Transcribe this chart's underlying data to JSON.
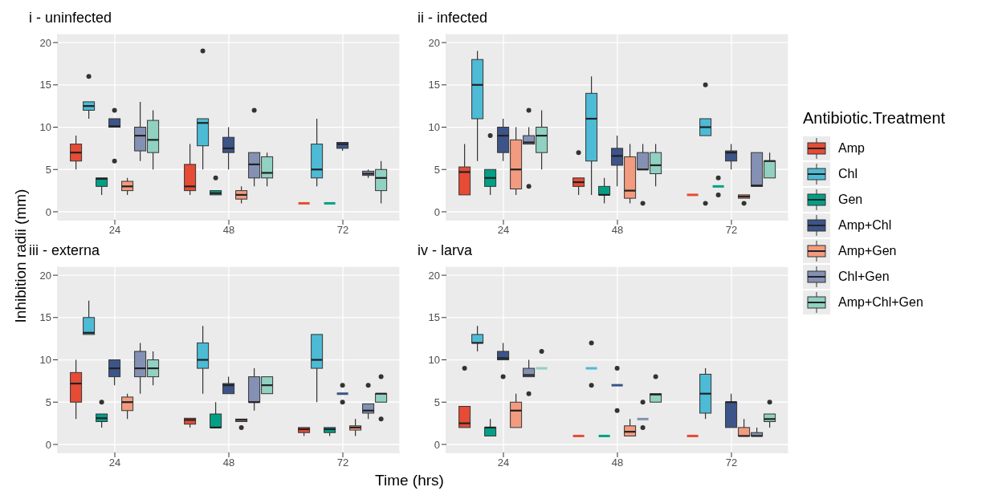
{
  "chart_data": [
    {
      "type": "box",
      "title": "i - uninfected",
      "xlabel": "Time (hrs)",
      "ylabel": "Inhibition radii (mm)",
      "legend_title": "Antibiotic.Treatment",
      "legend": "right",
      "grid": true,
      "categories": [
        "24",
        "48",
        "72"
      ],
      "ylim": [
        -0.95,
        21.05
      ],
      "yticks": [
        0,
        5,
        10,
        15,
        20
      ],
      "series": [
        {
          "name": "Amp",
          "color": "#e64b35",
          "boxes": [
            {
              "low": 5,
              "q1": 6,
              "median": 7,
              "q3": 8,
              "high": 9
            },
            {
              "low": 2,
              "q1": 2.5,
              "median": 3,
              "q3": 5.6,
              "high": 8
            },
            {
              "low": 1,
              "q1": 1,
              "median": 1,
              "q3": 1,
              "high": 1
            }
          ]
        },
        {
          "name": "Chl",
          "color": "#4dbbd5",
          "boxes": [
            {
              "low": 11,
              "q1": 12,
              "median": 12.5,
              "q3": 13,
              "high": 13,
              "outliers": [
                16
              ]
            },
            {
              "low": 5,
              "q1": 7.8,
              "median": 10.5,
              "q3": 11,
              "high": 11,
              "outliers": [
                19
              ]
            },
            {
              "low": 3,
              "q1": 4,
              "median": 5,
              "q3": 8,
              "high": 11
            }
          ]
        },
        {
          "name": "Gen",
          "color": "#00a087",
          "boxes": [
            {
              "low": 2,
              "q1": 3,
              "median": 3.9,
              "q3": 4,
              "high": 4
            },
            {
              "low": 2,
              "q1": 2,
              "median": 2.2,
              "q3": 2.5,
              "high": 2.5,
              "outliers": [
                4
              ]
            },
            {
              "low": 1,
              "q1": 1,
              "median": 1,
              "q3": 1,
              "high": 1
            }
          ]
        },
        {
          "name": "Amp+Chl",
          "color": "#3c5488",
          "boxes": [
            {
              "low": 10,
              "q1": 10,
              "median": 10.1,
              "q3": 11,
              "high": 11,
              "outliers": [
                12,
                6
              ]
            },
            {
              "low": 5,
              "q1": 7,
              "median": 7.5,
              "q3": 8.8,
              "high": 10
            },
            {
              "low": 7.2,
              "q1": 7.5,
              "median": 8,
              "q3": 8.2,
              "high": 8.2
            }
          ]
        },
        {
          "name": "Amp+Gen",
          "color": "#f39b7f",
          "boxes": [
            {
              "low": 2,
              "q1": 2.5,
              "median": 3,
              "q3": 3.6,
              "high": 4
            },
            {
              "low": 1,
              "q1": 1.5,
              "median": 2,
              "q3": 2.5,
              "high": 3
            },
            null
          ]
        },
        {
          "name": "Chl+Gen",
          "color": "#8491b4",
          "boxes": [
            {
              "low": 6,
              "q1": 7.2,
              "median": 9,
              "q3": 10,
              "high": 13
            },
            {
              "low": 3,
              "q1": 4,
              "median": 5.6,
              "q3": 7,
              "high": 7,
              "outliers": [
                12
              ]
            },
            {
              "low": 4,
              "q1": 4.3,
              "median": 4.5,
              "q3": 4.8,
              "high": 5
            }
          ]
        },
        {
          "name": "Amp+Chl+Gen",
          "color": "#91d1c2",
          "boxes": [
            {
              "low": 5,
              "q1": 7,
              "median": 8.5,
              "q3": 10.8,
              "high": 12
            },
            {
              "low": 3,
              "q1": 4,
              "median": 4.6,
              "q3": 6.5,
              "high": 7
            },
            {
              "low": 1,
              "q1": 2.5,
              "median": 4,
              "q3": 5,
              "high": 6
            }
          ]
        }
      ]
    },
    {
      "type": "box",
      "title": "ii - infected",
      "grid": true,
      "categories": [
        "24",
        "48",
        "72"
      ],
      "ylim": [
        -0.95,
        21.05
      ],
      "yticks": [
        0,
        5,
        10,
        15,
        20
      ],
      "series": [
        {
          "color": "#e64b35",
          "boxes": [
            {
              "low": 2,
              "q1": 2,
              "median": 4.7,
              "q3": 5.3,
              "high": 8
            },
            {
              "low": 2,
              "q1": 3,
              "median": 3.5,
              "q3": 4,
              "high": 4,
              "outliers": [
                7
              ]
            },
            {
              "low": 2,
              "q1": 2,
              "median": 2,
              "q3": 2,
              "high": 2
            }
          ]
        },
        {
          "color": "#4dbbd5",
          "boxes": [
            {
              "low": 6,
              "q1": 11,
              "median": 15,
              "q3": 18,
              "high": 19
            },
            {
              "low": 2,
              "q1": 6,
              "median": 11,
              "q3": 14,
              "high": 16
            },
            {
              "low": 9,
              "q1": 9,
              "median": 10,
              "q3": 11,
              "high": 11,
              "outliers": [
                15,
                1
              ]
            }
          ]
        },
        {
          "color": "#00a087",
          "boxes": [
            {
              "low": 2,
              "q1": 3,
              "median": 4,
              "q3": 5,
              "high": 5,
              "outliers": [
                9
              ]
            },
            {
              "low": 1,
              "q1": 2,
              "median": 2,
              "q3": 3,
              "high": 4
            },
            {
              "low": 3,
              "q1": 3,
              "median": 3,
              "q3": 3,
              "high": 3,
              "outliers": [
                4,
                2
              ]
            }
          ]
        },
        {
          "color": "#3c5488",
          "boxes": [
            {
              "low": 6,
              "q1": 7,
              "median": 9,
              "q3": 10,
              "high": 11
            },
            {
              "low": 3,
              "q1": 5.5,
              "median": 6.6,
              "q3": 7.5,
              "high": 9
            },
            {
              "low": 5,
              "q1": 6,
              "median": 7,
              "q3": 7.2,
              "high": 8
            }
          ]
        },
        {
          "color": "#f39b7f",
          "boxes": [
            {
              "low": 2,
              "q1": 2.7,
              "median": 5,
              "q3": 8.5,
              "high": 10
            },
            {
              "low": 1,
              "q1": 1.6,
              "median": 2.5,
              "q3": 6.5,
              "high": 8
            },
            {
              "low": 1.6,
              "q1": 1.6,
              "median": 1.8,
              "q3": 2,
              "high": 2,
              "outliers": [
                1
              ]
            }
          ]
        },
        {
          "color": "#8491b4",
          "boxes": [
            {
              "low": 8,
              "q1": 8,
              "median": 8.2,
              "q3": 9,
              "high": 10,
              "outliers": [
                12,
                3
              ]
            },
            {
              "low": 5,
              "q1": 5,
              "median": 5,
              "q3": 7,
              "high": 8,
              "outliers": [
                1
              ]
            },
            {
              "low": 3,
              "q1": 3,
              "median": 3.1,
              "q3": 7,
              "high": 7
            }
          ]
        },
        {
          "color": "#91d1c2",
          "boxes": [
            {
              "low": 5,
              "q1": 7,
              "median": 9,
              "q3": 10,
              "high": 12
            },
            {
              "low": 3,
              "q1": 4.5,
              "median": 5.5,
              "q3": 7,
              "high": 8
            },
            {
              "low": 4,
              "q1": 4,
              "median": 6,
              "q3": 6,
              "high": 7
            }
          ]
        }
      ]
    },
    {
      "type": "box",
      "title": "iii - externa",
      "grid": true,
      "categories": [
        "24",
        "48",
        "72"
      ],
      "ylim": [
        -0.95,
        21.05
      ],
      "yticks": [
        0,
        5,
        10,
        15,
        20
      ],
      "series": [
        {
          "color": "#e64b35",
          "boxes": [
            {
              "low": 3,
              "q1": 5,
              "median": 7.2,
              "q3": 8.5,
              "high": 10
            },
            {
              "low": 2,
              "q1": 2.4,
              "median": 2.9,
              "q3": 3.1,
              "high": 3.1
            },
            {
              "low": 1,
              "q1": 1.4,
              "median": 1.8,
              "q3": 2,
              "high": 2
            }
          ]
        },
        {
          "color": "#4dbbd5",
          "boxes": [
            {
              "low": 13,
              "q1": 13,
              "median": 13.2,
              "q3": 15,
              "high": 17
            },
            {
              "low": 6,
              "q1": 9,
              "median": 10,
              "q3": 12,
              "high": 14
            },
            {
              "low": 5,
              "q1": 9,
              "median": 10,
              "q3": 13,
              "high": 13
            }
          ]
        },
        {
          "color": "#00a087",
          "boxes": [
            {
              "low": 2,
              "q1": 2.7,
              "median": 3.1,
              "q3": 3.6,
              "high": 3.6,
              "outliers": [
                5
              ]
            },
            {
              "low": 2,
              "q1": 2,
              "median": 2,
              "q3": 3.6,
              "high": 5
            },
            {
              "low": 1,
              "q1": 1.4,
              "median": 1.8,
              "q3": 2,
              "high": 2
            }
          ]
        },
        {
          "color": "#3c5488",
          "boxes": [
            {
              "low": 7,
              "q1": 8,
              "median": 9,
              "q3": 10,
              "high": 10
            },
            {
              "low": 6,
              "q1": 6,
              "median": 7,
              "q3": 7.2,
              "high": 8
            },
            {
              "low": 6,
              "q1": 6,
              "median": 6,
              "q3": 6,
              "high": 6,
              "outliers": [
                7,
                5
              ]
            }
          ]
        },
        {
          "color": "#f39b7f",
          "boxes": [
            {
              "low": 3,
              "q1": 4,
              "median": 5,
              "q3": 5.6,
              "high": 6
            },
            {
              "low": 2.7,
              "q1": 2.7,
              "median": 2.9,
              "q3": 3,
              "high": 3,
              "outliers": [
                2
              ]
            },
            {
              "low": 1,
              "q1": 1.7,
              "median": 2,
              "q3": 2.2,
              "high": 3
            }
          ]
        },
        {
          "color": "#8491b4",
          "boxes": [
            {
              "low": 6,
              "q1": 8,
              "median": 9,
              "q3": 11,
              "high": 12
            },
            {
              "low": 4,
              "q1": 5,
              "median": 5,
              "q3": 8,
              "high": 9
            },
            {
              "low": 3,
              "q1": 3.7,
              "median": 4,
              "q3": 4.8,
              "high": 4.8,
              "outliers": [
                7
              ]
            }
          ]
        },
        {
          "color": "#91d1c2",
          "boxes": [
            {
              "low": 7,
              "q1": 8,
              "median": 9,
              "q3": 10,
              "high": 11
            },
            {
              "low": 6,
              "q1": 6,
              "median": 7,
              "q3": 8,
              "high": 8
            },
            {
              "low": 5,
              "q1": 5,
              "median": 6,
              "q3": 6,
              "high": 6,
              "outliers": [
                8,
                3
              ]
            }
          ]
        }
      ]
    },
    {
      "type": "box",
      "title": "iv - larva",
      "grid": true,
      "categories": [
        "24",
        "48",
        "72"
      ],
      "ylim": [
        -0.95,
        21.05
      ],
      "yticks": [
        0,
        5,
        10,
        15,
        20
      ],
      "series": [
        {
          "color": "#e64b35",
          "boxes": [
            {
              "low": 2,
              "q1": 2,
              "median": 2.5,
              "q3": 4.5,
              "high": 4.5,
              "outliers": [
                9
              ]
            },
            {
              "low": 1,
              "q1": 1,
              "median": 1,
              "q3": 1,
              "high": 1
            },
            {
              "low": 1,
              "q1": 1,
              "median": 1,
              "q3": 1,
              "high": 1
            }
          ]
        },
        {
          "color": "#4dbbd5",
          "boxes": [
            {
              "low": 11,
              "q1": 12,
              "median": 12,
              "q3": 13,
              "high": 14
            },
            {
              "low": 9,
              "q1": 9,
              "median": 9,
              "q3": 9,
              "high": 9,
              "outliers": [
                12,
                7
              ]
            },
            {
              "low": 3,
              "q1": 3.7,
              "median": 6,
              "q3": 8.3,
              "high": 9
            }
          ]
        },
        {
          "color": "#00a087",
          "boxes": [
            {
              "low": 1,
              "q1": 1,
              "median": 2,
              "q3": 2,
              "high": 3
            },
            {
              "low": 1,
              "q1": 1,
              "median": 1,
              "q3": 1,
              "high": 1
            },
            null
          ]
        },
        {
          "color": "#3c5488",
          "boxes": [
            {
              "low": 10,
              "q1": 10,
              "median": 10.2,
              "q3": 11,
              "high": 12,
              "outliers": [
                8
              ]
            },
            {
              "low": 7,
              "q1": 7,
              "median": 7,
              "q3": 7,
              "high": 7,
              "outliers": [
                9,
                4
              ]
            },
            {
              "low": 2,
              "q1": 2,
              "median": 5,
              "q3": 5,
              "high": 6
            }
          ]
        },
        {
          "color": "#f39b7f",
          "boxes": [
            {
              "low": 2,
              "q1": 2,
              "median": 4,
              "q3": 5,
              "high": 6
            },
            {
              "low": 1,
              "q1": 1,
              "median": 1.5,
              "q3": 2.2,
              "high": 3
            },
            {
              "low": 1,
              "q1": 1,
              "median": 1,
              "q3": 2,
              "high": 3
            }
          ]
        },
        {
          "color": "#8491b4",
          "boxes": [
            {
              "low": 8,
              "q1": 8,
              "median": 8.2,
              "q3": 9,
              "high": 10,
              "outliers": [
                6
              ]
            },
            {
              "low": 3,
              "q1": 3,
              "median": 3,
              "q3": 3,
              "high": 3,
              "outliers": [
                5,
                2
              ]
            },
            {
              "low": 1,
              "q1": 1,
              "median": 1,
              "q3": 1.4,
              "high": 2
            }
          ]
        },
        {
          "color": "#91d1c2",
          "boxes": [
            {
              "low": 9,
              "q1": 9,
              "median": 9,
              "q3": 9,
              "high": 9,
              "outliers": [
                11
              ]
            },
            {
              "low": 5,
              "q1": 5,
              "median": 5.9,
              "q3": 6,
              "high": 6,
              "outliers": [
                8
              ]
            },
            {
              "low": 2,
              "q1": 2.7,
              "median": 3,
              "q3": 3.6,
              "high": 3.6,
              "outliers": [
                5
              ]
            }
          ]
        }
      ]
    }
  ]
}
